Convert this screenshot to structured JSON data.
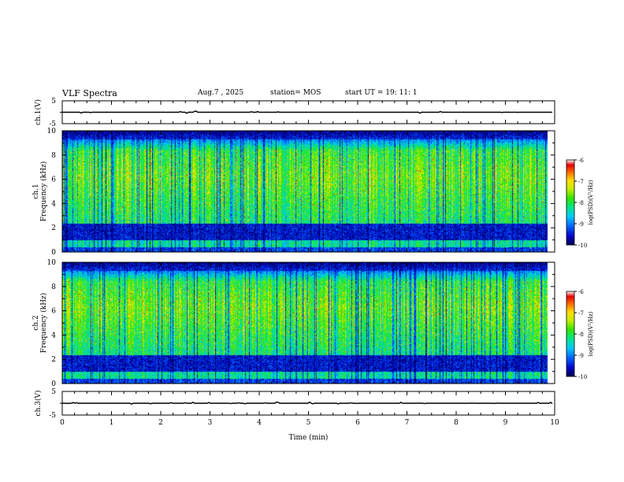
{
  "header": {
    "title": "VLF Spectra",
    "date": "Aug.7 , 2025",
    "station": "station= MOS",
    "start": "start UT =  19: 11: 1"
  },
  "colors": {
    "spectrogram_palette": [
      "#000050",
      "#0000c8",
      "#0064ff",
      "#00c8ff",
      "#00e68c",
      "#32e600",
      "#c8ee00",
      "#ffdc00",
      "#ff6400",
      "#e60000",
      "#ffffff"
    ]
  },
  "chart_data": [
    {
      "type": "line",
      "name": "ch1-waveform",
      "ylabel": "ch.1(V)",
      "ylim": [
        -5,
        5
      ],
      "yticks": [
        "5",
        "-5"
      ],
      "xlim": [
        0,
        10
      ],
      "baseline_v": 0
    },
    {
      "type": "heatmap",
      "name": "ch1-spectrogram",
      "ylabel": "ch.1 Frequency (kHz)",
      "ylabel_lines": [
        "ch.1",
        "Frequency (kHz)"
      ],
      "ylim": [
        0,
        10
      ],
      "yticks": [
        "0",
        "2",
        "4",
        "6",
        "8",
        "10"
      ],
      "xlim": [
        0,
        10
      ],
      "data_end_min": 9.85,
      "colorbar": {
        "label": "log(PSD)(V²/Hz)",
        "range": [
          -10,
          -6
        ],
        "ticks": [
          "-6",
          "-7",
          "-8",
          "-9",
          "-10"
        ]
      }
    },
    {
      "type": "heatmap",
      "name": "ch2-spectrogram",
      "ylabel": "ch.2 Frequency (kHz)",
      "ylabel_lines": [
        "ch.2",
        "Frequency (kHz)"
      ],
      "ylim": [
        0,
        10
      ],
      "yticks": [
        "0",
        "2",
        "4",
        "6",
        "8",
        "10"
      ],
      "xlim": [
        0,
        10
      ],
      "data_end_min": 9.85,
      "colorbar": {
        "label": "log(PSD)(V²/Hz)",
        "range": [
          -10,
          -6
        ],
        "ticks": [
          "-6",
          "-7",
          "-8",
          "-9",
          "-10"
        ]
      }
    },
    {
      "type": "line",
      "name": "ch3-waveform",
      "ylabel": "ch.3(V)",
      "ylim": [
        -5,
        5
      ],
      "yticks": [
        "5",
        "-5"
      ],
      "xlim": [
        0,
        10
      ],
      "xlabel": "Time (min)",
      "xticks": [
        "0",
        "1",
        "2",
        "3",
        "4",
        "5",
        "6",
        "7",
        "8",
        "9",
        "10"
      ],
      "baseline_v": 0
    }
  ]
}
